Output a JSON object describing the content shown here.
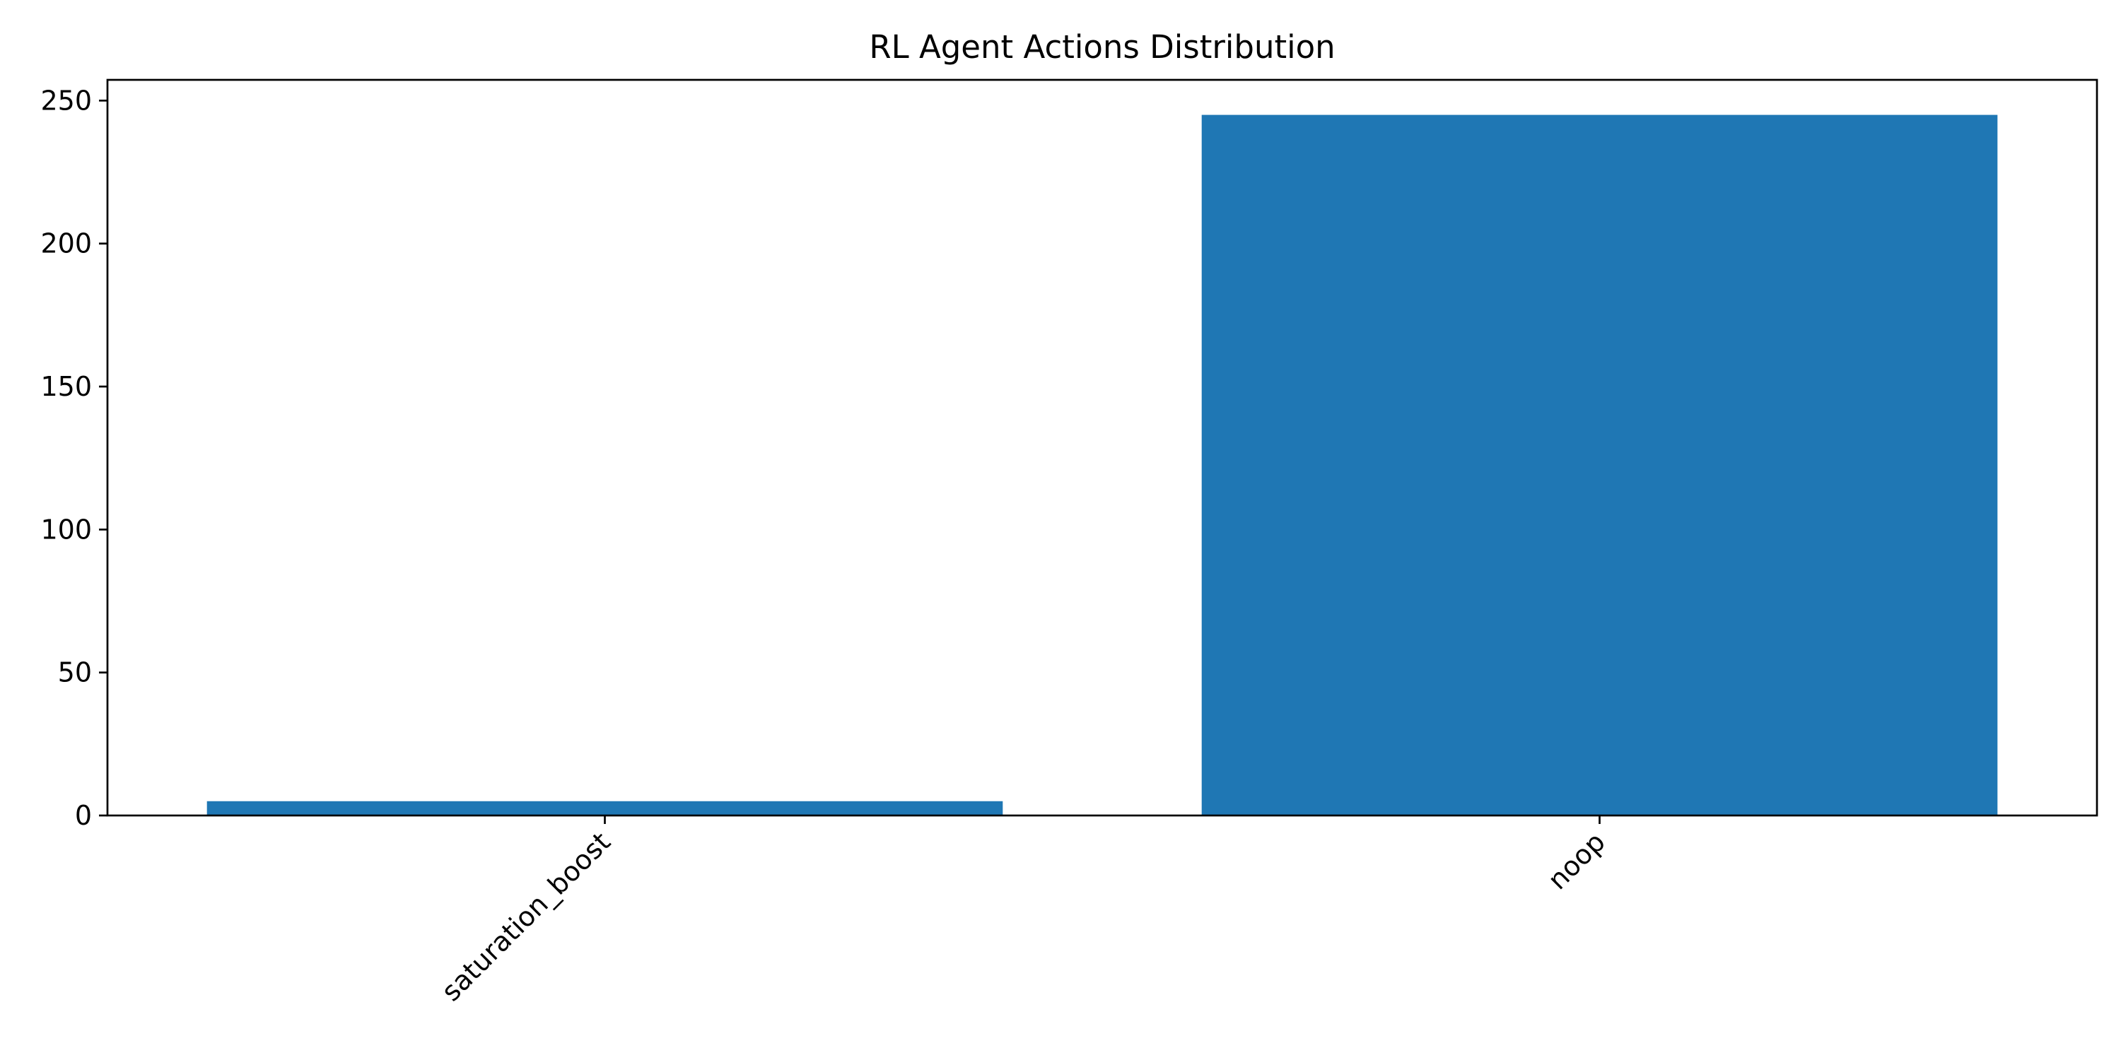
{
  "chart_data": {
    "type": "bar",
    "title": "RL Agent Actions Distribution",
    "xlabel": "",
    "ylabel": "",
    "categories": [
      "saturation_boost",
      "noop"
    ],
    "values": [
      5,
      245
    ],
    "ylim": [
      0,
      257.25
    ],
    "yticks": [
      0,
      50,
      100,
      150,
      200,
      250
    ],
    "bar_color": "#1f77b4",
    "grid": false,
    "legend": "none",
    "x_tick_rotation": "45 degrees"
  }
}
